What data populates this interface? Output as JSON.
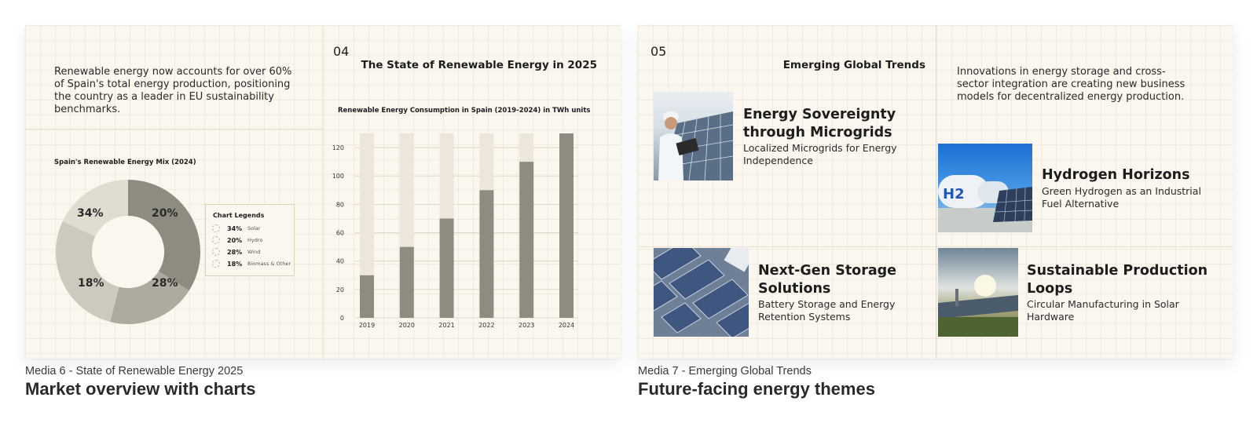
{
  "media": [
    {
      "caption": "Media 6 - State of Renewable Energy 2025",
      "heading": "Market overview with charts",
      "slide": {
        "number": "04",
        "title": "The State of Renewable Energy in 2025",
        "intro": "Renewable energy now accounts for over 60% of Spain's total energy production, positioning the country as a leader in EU sustainability benchmarks.",
        "legend_title": "Chart Legends"
      }
    },
    {
      "caption": "Media 7 - Emerging Global Trends",
      "heading": "Future-facing energy themes",
      "slide": {
        "number": "05",
        "title": "Emerging Global Trends",
        "intro": "Innovations in energy storage and cross-sector integration are creating new business models for decentralized energy production.",
        "topics": [
          {
            "title": "Energy Sovereignty through Microgrids",
            "subtitle": "Localized Microgrids for Energy Independence",
            "image": "engineer-with-laptop-on-solar-panels"
          },
          {
            "title": "Hydrogen Horizons",
            "subtitle": "Green Hydrogen as an Industrial Fuel Alternative",
            "image": "hydrogen-tanks-with-h2-label"
          },
          {
            "title": "Next-Gen Storage Solutions",
            "subtitle": "Battery Storage and Energy Retention Systems",
            "image": "aerial-solar-panel-rows"
          },
          {
            "title": "Sustainable Production Loops",
            "subtitle": "Circular Manufacturing in Solar Hardware",
            "image": "solar-field-at-sunset"
          }
        ]
      }
    }
  ],
  "chart_data": [
    {
      "type": "pie",
      "title": "Spain's Renewable Energy Mix (2024)",
      "donut": true,
      "slices": [
        {
          "label": "Solar",
          "value": 34,
          "display": "34%",
          "color": "#8e8c80"
        },
        {
          "label": "Hydro",
          "value": 20,
          "display": "20%",
          "color": "#aeaaa0"
        },
        {
          "label": "Wind",
          "value": 28,
          "display": "28%",
          "color": "#cdc9bd"
        },
        {
          "label": "Biomass & Other",
          "value": 18,
          "display": "18%",
          "color": "#e0dccf"
        }
      ],
      "legend_position": "right"
    },
    {
      "type": "bar",
      "title": "Renewable Energy Consumption in Spain (2019-2024) in TWh units",
      "categories": [
        "2019",
        "2020",
        "2021",
        "2022",
        "2023",
        "2024"
      ],
      "values": [
        30,
        50,
        70,
        90,
        110,
        130
      ],
      "max_values": [
        130,
        130,
        130,
        130,
        130,
        130
      ],
      "ylim": [
        0,
        130
      ],
      "yticks": [
        0,
        20,
        40,
        60,
        80,
        100,
        120
      ],
      "bar_color": "#8e8c80",
      "background_bar_color": "#ede6db",
      "grid": true
    }
  ]
}
